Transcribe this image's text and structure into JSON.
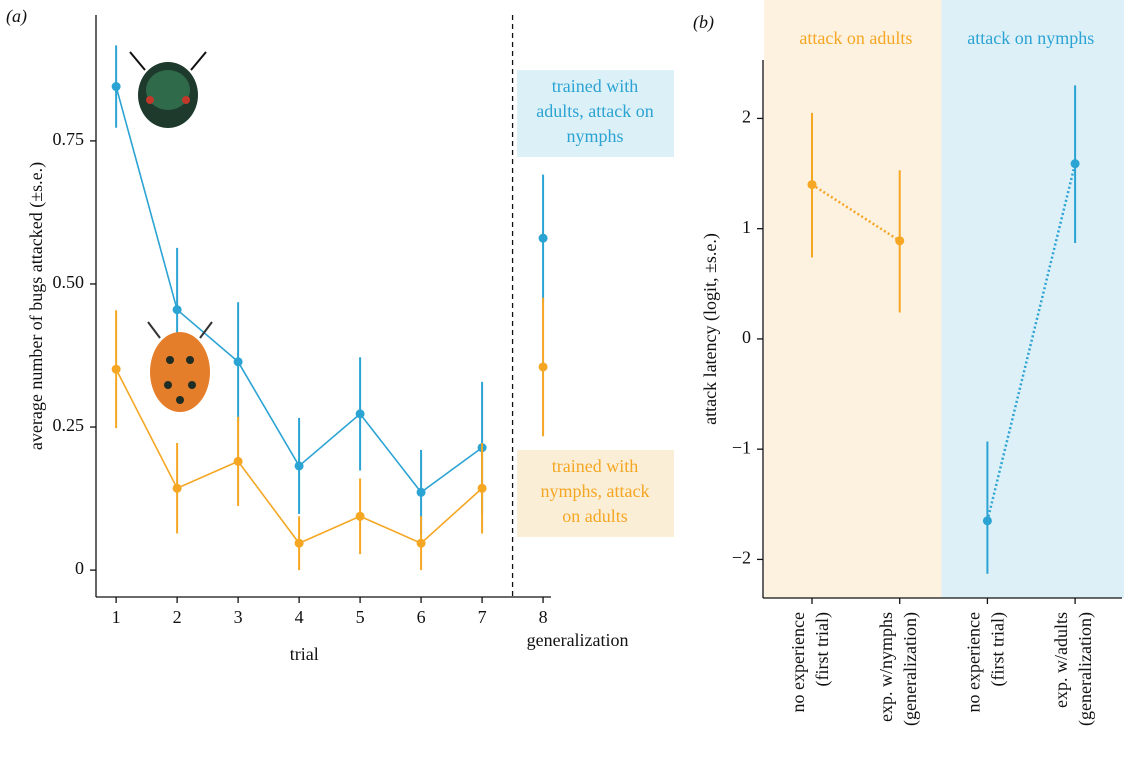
{
  "chart_data": [
    {
      "type": "errorline",
      "panel_label": "(a)",
      "x_label": "trial",
      "y_label": "average number of bugs attacked (±s.e.)",
      "x": [
        1,
        2,
        3,
        4,
        5,
        6,
        7,
        8
      ],
      "xlim": [
        0.67,
        8.13
      ],
      "xticks": [
        1,
        2,
        3,
        4,
        5,
        6,
        7,
        8
      ],
      "ylim": [
        -0.047,
        0.97
      ],
      "yticks": [
        0,
        0.25,
        {
          "value": 0.5,
          "label": "0.50"
        },
        0.75
      ],
      "divider_x": 7.5,
      "divider_label": "generalization",
      "series": [
        {
          "label_lines": [
            "trained with",
            "adults, attack on",
            "nymphs"
          ],
          "color": "#2ba3d3",
          "box_color": "#dcf0f8",
          "values": [
            0.845,
            0.455,
            0.364,
            0.182,
            0.273,
            0.136,
            0.214,
            0.58
          ],
          "errors": [
            0.072,
            0.108,
            0.104,
            0.084,
            0.099,
            0.074,
            0.115,
            0.111
          ]
        },
        {
          "label_lines": [
            "trained with",
            "nymphs, attack",
            "on adults"
          ],
          "color": "#f5a623",
          "box_color": "#fbeed6",
          "values": [
            0.351,
            0.143,
            0.19,
            0.047,
            0.094,
            0.047,
            0.143,
            0.355
          ],
          "errors": [
            0.103,
            0.079,
            0.078,
            0.047,
            0.066,
            0.047,
            0.079,
            0.121
          ]
        }
      ]
    },
    {
      "type": "dotpair",
      "panel_label": "(b)",
      "y_label": "attack latency (logit, ±s.e.)",
      "categories": [
        [
          "no experience",
          "(first trial)"
        ],
        [
          "exp. w/nymphs",
          "(generalization)"
        ],
        [
          "no experience",
          "(first trial)"
        ],
        [
          "exp. w/adults",
          "(generalization)"
        ]
      ],
      "ylim": [
        -2.35,
        2.53
      ],
      "yticks": [
        {
          "value": -2,
          "label": "−2"
        },
        {
          "value": -1,
          "label": "−1"
        },
        0,
        1,
        2
      ],
      "series": [
        {
          "group_label": "attack on adults",
          "color": "#f5a623",
          "background": "#fdf1e0",
          "values": [
            1.4,
            0.89,
            null,
            null
          ],
          "upper": [
            2.05,
            1.53,
            null,
            null
          ],
          "lower": [
            0.74,
            0.24,
            null,
            null
          ]
        },
        {
          "group_label": "attack on nymphs",
          "color": "#2ba3d3",
          "background": "#ddf0f8",
          "values": [
            null,
            null,
            -1.65,
            1.59
          ],
          "upper": [
            null,
            null,
            -0.93,
            2.3
          ],
          "lower": [
            null,
            null,
            -2.13,
            0.87
          ]
        }
      ]
    }
  ]
}
